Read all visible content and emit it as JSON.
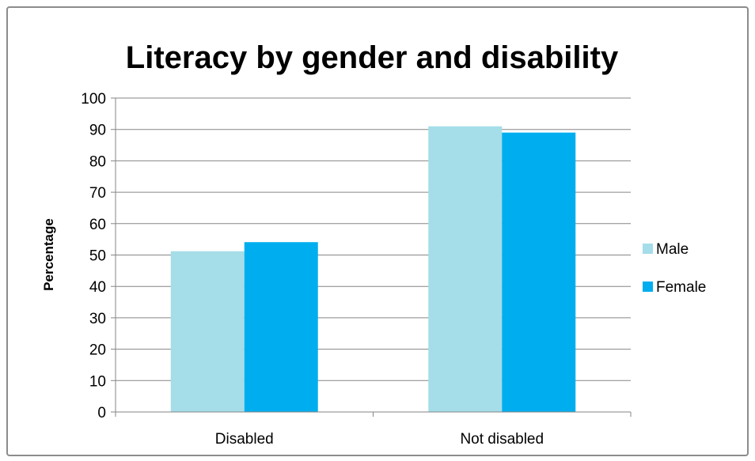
{
  "chart_data": {
    "type": "bar",
    "title": "Literacy by gender and disability",
    "xlabel": "",
    "ylabel": "Percentage",
    "categories": [
      "Disabled",
      "Not disabled"
    ],
    "series": [
      {
        "name": "Male",
        "values": [
          51.2,
          91.0
        ],
        "color": "#a5dde9"
      },
      {
        "name": "Female",
        "values": [
          54.1,
          89.0
        ],
        "color": "#00aeef"
      }
    ],
    "ylim": [
      0,
      100
    ],
    "yticks": [
      0,
      10,
      20,
      30,
      40,
      50,
      60,
      70,
      80,
      90,
      100
    ],
    "grid": true,
    "legend_position": "right"
  }
}
